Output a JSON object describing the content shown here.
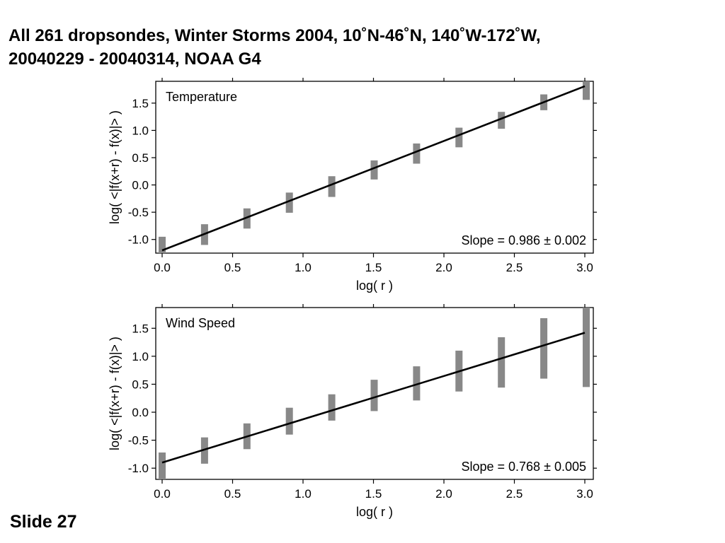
{
  "slide": {
    "title_line1": "All 261 dropsondes, Winter Storms 2004, 10˚N-46˚N, 140˚W-172˚W,",
    "title_line2": "20040229 - 20040314, NOAA G4",
    "slide_label": "Slide 27"
  },
  "chart_data": [
    {
      "type": "scatter",
      "panel_label": "Temperature",
      "xlabel": "log( r )",
      "ylabel": "log( <|f(x+r) - f(x)|> )",
      "xlim": [
        0.0,
        3.0
      ],
      "ylim": [
        -1.25,
        1.9
      ],
      "xticks": [
        "0.0",
        "0.5",
        "1.0",
        "1.5",
        "2.0",
        "2.5",
        "3.0"
      ],
      "yticks": [
        "-1.0",
        "-0.5",
        "0.0",
        "0.5",
        "1.0",
        "1.5"
      ],
      "annotation": "Slope = 0.986 ± 0.002",
      "point_color": "#888888",
      "fit_line": {
        "x": [
          0.0,
          3.0
        ],
        "y": [
          -1.2,
          1.81
        ]
      },
      "groups": [
        {
          "x": 0.0,
          "ymin": -1.25,
          "ymax": -0.95
        },
        {
          "x": 0.301,
          "ymin": -1.1,
          "ymax": -0.72
        },
        {
          "x": 0.602,
          "ymin": -0.8,
          "ymax": -0.43
        },
        {
          "x": 0.903,
          "ymin": -0.51,
          "ymax": -0.14
        },
        {
          "x": 1.204,
          "ymin": -0.22,
          "ymax": 0.16
        },
        {
          "x": 1.505,
          "ymin": 0.1,
          "ymax": 0.45
        },
        {
          "x": 1.806,
          "ymin": 0.39,
          "ymax": 0.76
        },
        {
          "x": 2.107,
          "ymin": 0.69,
          "ymax": 1.05
        },
        {
          "x": 2.408,
          "ymin": 1.03,
          "ymax": 1.34
        },
        {
          "x": 2.709,
          "ymin": 1.37,
          "ymax": 1.66
        },
        {
          "x": 3.01,
          "ymin": 1.56,
          "ymax": 1.93
        }
      ]
    },
    {
      "type": "scatter",
      "panel_label": "Wind Speed",
      "xlabel": "log( r )",
      "ylabel": "log( <|f(x+r) - f(x)|> )",
      "xlim": [
        0.0,
        3.0
      ],
      "ylim": [
        -1.2,
        1.87
      ],
      "xticks": [
        "0.0",
        "0.5",
        "1.0",
        "1.5",
        "2.0",
        "2.5",
        "3.0"
      ],
      "yticks": [
        "-1.0",
        "-0.5",
        "0.0",
        "0.5",
        "1.0",
        "1.5"
      ],
      "annotation": "Slope = 0.768 ± 0.005",
      "point_color": "#888888",
      "fit_line": {
        "x": [
          0.0,
          3.0
        ],
        "y": [
          -0.9,
          1.42
        ]
      },
      "groups": [
        {
          "x": 0.0,
          "ymin": -1.2,
          "ymax": -0.72
        },
        {
          "x": 0.301,
          "ymin": -0.92,
          "ymax": -0.45
        },
        {
          "x": 0.602,
          "ymin": -0.66,
          "ymax": -0.2
        },
        {
          "x": 0.903,
          "ymin": -0.4,
          "ymax": 0.08
        },
        {
          "x": 1.204,
          "ymin": -0.15,
          "ymax": 0.32
        },
        {
          "x": 1.505,
          "ymin": 0.02,
          "ymax": 0.58
        },
        {
          "x": 1.806,
          "ymin": 0.21,
          "ymax": 0.82
        },
        {
          "x": 2.107,
          "ymin": 0.37,
          "ymax": 1.1
        },
        {
          "x": 2.408,
          "ymin": 0.44,
          "ymax": 1.34
        },
        {
          "x": 2.709,
          "ymin": 0.6,
          "ymax": 1.68
        },
        {
          "x": 3.01,
          "ymin": 0.45,
          "ymax": 1.9
        }
      ]
    }
  ]
}
